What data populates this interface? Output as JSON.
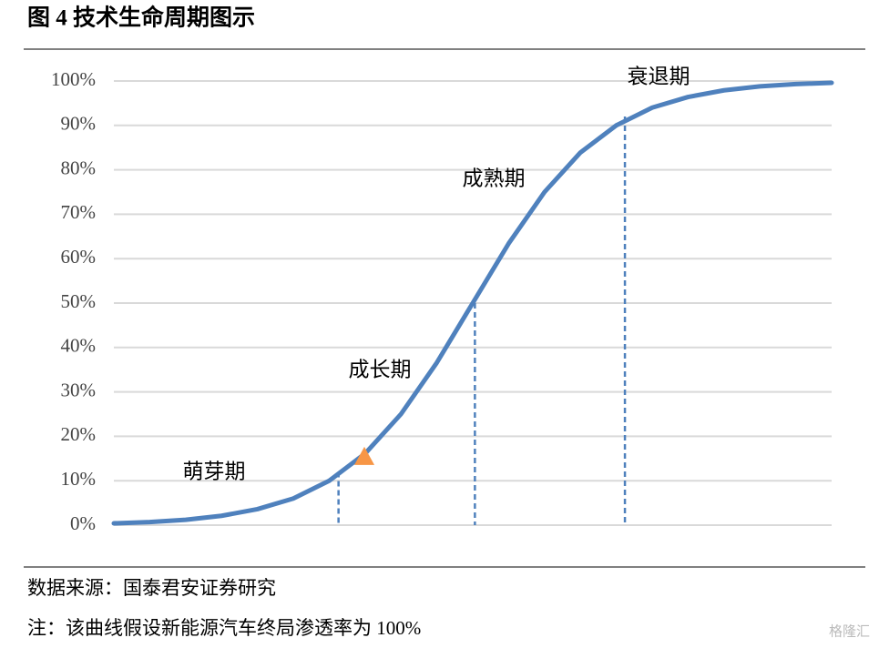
{
  "chart_data": {
    "type": "line",
    "title": "图 4  技术生命周期图示",
    "source": "数据来源：国泰君安证券研究",
    "note": "注：该曲线假设新能源汽车终局渗透率为 100%",
    "watermark": "格隆汇",
    "annotations": [
      "萌芽期",
      "成长期",
      "成熟期",
      "衰退期"
    ],
    "x": [
      0,
      5,
      10,
      15,
      20,
      25,
      30,
      35,
      40,
      45,
      50,
      55,
      60,
      65,
      70,
      75,
      80,
      85,
      90,
      95,
      100
    ],
    "xlim": [
      0,
      100
    ],
    "series": [
      {
        "color": "#4f81bd",
        "values": [
          0.4,
          0.7,
          1.2,
          2.1,
          3.6,
          6.0,
          10.0,
          16.1,
          25.0,
          36.6,
          50,
          63.4,
          75,
          83.9,
          90,
          94,
          96.4,
          97.9,
          98.8,
          99.3,
          99.6
        ]
      }
    ],
    "drop_lines": {
      "color": "#4f81bd",
      "x": [
        31.3,
        50.3,
        71.2
      ],
      "y": [
        12,
        50,
        92
      ]
    },
    "marker": {
      "x": 34.9,
      "y": 15.4,
      "color": "#f79646"
    },
    "ylim": [
      0,
      100
    ],
    "yticks": [
      {
        "value": 0,
        "label": "0%"
      },
      {
        "value": 10,
        "label": "10%"
      },
      {
        "value": 20,
        "label": "20%"
      },
      {
        "value": 30,
        "label": "30%"
      },
      {
        "value": 40,
        "label": "40%"
      },
      {
        "value": 50,
        "label": "50%"
      },
      {
        "value": 60,
        "label": "60%"
      },
      {
        "value": 70,
        "label": "70%"
      },
      {
        "value": 80,
        "label": "80%"
      },
      {
        "value": 90,
        "label": "90%"
      },
      {
        "value": 100,
        "label": "100%"
      }
    ],
    "grid": true
  }
}
